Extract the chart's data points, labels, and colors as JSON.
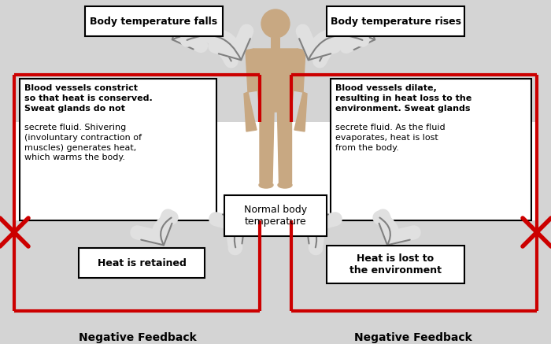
{
  "bg_color": "#d4d4d4",
  "title_left": "Negative Feedback",
  "title_right": "Negative Feedback",
  "box_top_left_text": "Body temperature falls",
  "box_top_right_text": "Body temperature rises",
  "box_mid_left_bold": "Blood vessels constrict\nso that heat is conserved.\nSweat glands do not",
  "box_mid_left_normal": "secrete fluid. Shivering\n(involuntary contraction of\nmuscles) generates heat,\nwhich warms the body.",
  "box_mid_right_bold": "Blood vessels dilate,\nresulting in heat loss to the\nenvironment. Sweat glands",
  "box_mid_right_normal": "secrete fluid. As the fluid\nevaporates, heat is lost\nfrom the body.",
  "box_bot_left_text": "Heat is retained",
  "box_bot_right_text": "Heat is lost to\nthe environment",
  "box_center_text": "Normal body\ntemperature",
  "figure_color": "#c8a882",
  "red_color": "#cc0000",
  "arrow_fill": "#e0e0e0",
  "arrow_edge": "#808080",
  "box_facecolor": "#ffffff",
  "box_edgecolor": "#000000"
}
